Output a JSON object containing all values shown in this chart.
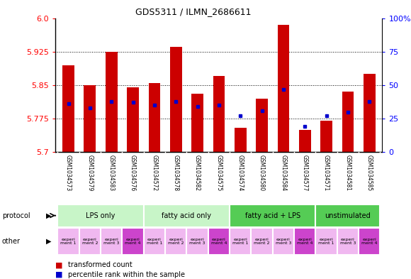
{
  "title": "GDS5311 / ILMN_2686611",
  "samples": [
    "GSM1034573",
    "GSM1034579",
    "GSM1034583",
    "GSM1034576",
    "GSM1034572",
    "GSM1034578",
    "GSM1034582",
    "GSM1034575",
    "GSM1034574",
    "GSM1034580",
    "GSM1034584",
    "GSM1034577",
    "GSM1034571",
    "GSM1034581",
    "GSM1034585"
  ],
  "red_values": [
    5.895,
    5.85,
    5.925,
    5.845,
    5.855,
    5.935,
    5.83,
    5.87,
    5.755,
    5.82,
    5.985,
    5.75,
    5.77,
    5.835,
    5.875
  ],
  "blue_fracs": [
    0.36,
    0.33,
    0.38,
    0.37,
    0.35,
    0.38,
    0.34,
    0.35,
    0.27,
    0.31,
    0.47,
    0.19,
    0.27,
    0.3,
    0.38
  ],
  "ymin": 5.7,
  "ymax": 6.0,
  "yticks": [
    5.7,
    5.775,
    5.85,
    5.925,
    6.0
  ],
  "y2ticks": [
    0,
    25,
    50,
    75,
    100
  ],
  "protocols": [
    {
      "label": "LPS only",
      "start": 0,
      "end": 4,
      "color": "#c8f5c8"
    },
    {
      "label": "fatty acid only",
      "start": 4,
      "end": 8,
      "color": "#c8f5c8"
    },
    {
      "label": "fatty acid + LPS",
      "start": 8,
      "end": 12,
      "color": "#55cc55"
    },
    {
      "label": "unstimulated",
      "start": 12,
      "end": 15,
      "color": "#55cc55"
    }
  ],
  "other_labels": [
    "experi\nment 1",
    "experi\nment 2",
    "experi\nment 3",
    "experi\nment 4",
    "experi\nment 1",
    "experi\nment 2",
    "experi\nment 3",
    "experi\nment 4",
    "experi\nment 1",
    "experi\nment 2",
    "experi\nment 3",
    "experi\nment 4",
    "experi\nment 1",
    "experi\nment 3",
    "experi\nment 4"
  ],
  "other_colors": [
    "#f0b8f0",
    "#f0b8f0",
    "#f0b8f0",
    "#cc44cc",
    "#f0b8f0",
    "#f0b8f0",
    "#f0b8f0",
    "#cc44cc",
    "#f0b8f0",
    "#f0b8f0",
    "#f0b8f0",
    "#cc44cc",
    "#f0b8f0",
    "#f0b8f0",
    "#cc44cc"
  ],
  "bar_color": "#cc0000",
  "blue_color": "#0000cc",
  "sample_bg": "#d8d8d8",
  "chart_bg": "#ffffff"
}
